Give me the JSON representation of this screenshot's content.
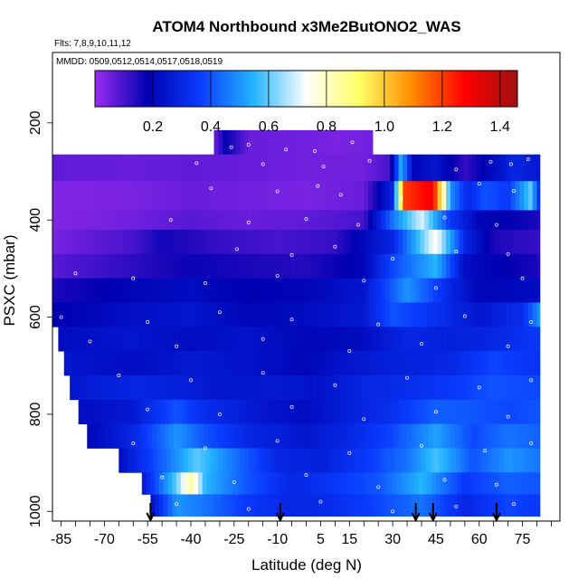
{
  "chart_data": {
    "type": "heatmap",
    "title": "ATOM4 Northbound x3Me2ButONO2_WAS",
    "flights_label": "Flts: 7,8,9,10,11,12",
    "dates_label": "MMDD: 0509,0512,0514,0517,0518,0519",
    "xlabel": "Latitude (deg N)",
    "ylabel": "PSXC (mbar)",
    "xlim": [
      -88,
      88
    ],
    "ylim": [
      1020,
      55
    ],
    "y_reversed": true,
    "grid": false,
    "xticks": [
      -85,
      -70,
      -55,
      -40,
      -25,
      -10,
      5,
      15,
      30,
      45,
      60,
      75
    ],
    "yticks": [
      200,
      400,
      600,
      800,
      1000
    ],
    "colorbar": {
      "range": [
        0.0,
        1.46
      ],
      "ticks": [
        0.2,
        0.4,
        0.6,
        0.8,
        1.0,
        1.2,
        1.4
      ],
      "colors": [
        "#9b2cf0",
        "#0000b0",
        "#0a3cff",
        "#23b4ff",
        "#ffffff",
        "#ffff66",
        "#ff8c00",
        "#ff0000",
        "#a01010"
      ]
    },
    "arrows_lat": [
      -54,
      -9,
      38,
      44,
      66
    ],
    "curtain_rows": [
      {
        "p_top": 215,
        "p_bot": 265,
        "lat_start": -32,
        "lat_end": 23,
        "segments": [
          [
            -32,
            0.05
          ],
          [
            -28,
            0.18
          ],
          [
            -20,
            0.06
          ],
          [
            0,
            0.05
          ],
          [
            10,
            0.04
          ],
          [
            23,
            0.05
          ]
        ]
      },
      {
        "p_top": 265,
        "p_bot": 320,
        "lat_start": -88,
        "lat_end": 81,
        "segments": [
          [
            -88,
            0.07
          ],
          [
            -60,
            0.06
          ],
          [
            -40,
            0.07
          ],
          [
            -20,
            0.06
          ],
          [
            0,
            0.05
          ],
          [
            20,
            0.05
          ],
          [
            29,
            0.1
          ],
          [
            33,
            0.55
          ],
          [
            37,
            0.2
          ],
          [
            45,
            0.25
          ],
          [
            55,
            0.12
          ],
          [
            65,
            0.22
          ],
          [
            72,
            0.3
          ],
          [
            81,
            0.25
          ]
        ]
      },
      {
        "p_top": 320,
        "p_bot": 380,
        "lat_start": -88,
        "lat_end": 81,
        "segments": [
          [
            -88,
            0.03
          ],
          [
            -60,
            0.04
          ],
          [
            -40,
            0.06
          ],
          [
            -20,
            0.05
          ],
          [
            0,
            0.04
          ],
          [
            20,
            0.06
          ],
          [
            30,
            0.3
          ],
          [
            34,
            1.2
          ],
          [
            44,
            1.3
          ],
          [
            50,
            0.5
          ],
          [
            56,
            0.3
          ],
          [
            62,
            0.4
          ],
          [
            70,
            0.35
          ],
          [
            78,
            0.6
          ],
          [
            81,
            0.3
          ]
        ]
      },
      {
        "p_top": 380,
        "p_bot": 420,
        "lat_start": -88,
        "lat_end": 81,
        "segments": [
          [
            -88,
            0.03
          ],
          [
            -60,
            0.05
          ],
          [
            -40,
            0.08
          ],
          [
            -20,
            0.06
          ],
          [
            0,
            0.07
          ],
          [
            20,
            0.1
          ],
          [
            30,
            0.45
          ],
          [
            40,
            0.7
          ],
          [
            50,
            0.35
          ],
          [
            60,
            0.2
          ],
          [
            70,
            0.18
          ],
          [
            81,
            0.15
          ]
        ]
      },
      {
        "p_top": 420,
        "p_bot": 470,
        "lat_start": -88,
        "lat_end": 81,
        "segments": [
          [
            -88,
            0.04
          ],
          [
            -60,
            0.1
          ],
          [
            -50,
            0.16
          ],
          [
            -30,
            0.12
          ],
          [
            -10,
            0.1
          ],
          [
            10,
            0.12
          ],
          [
            30,
            0.3
          ],
          [
            45,
            0.75
          ],
          [
            55,
            0.3
          ],
          [
            65,
            0.15
          ],
          [
            81,
            0.12
          ]
        ]
      },
      {
        "p_top": 470,
        "p_bot": 520,
        "lat_start": -88,
        "lat_end": 81,
        "segments": [
          [
            -88,
            0.08
          ],
          [
            -60,
            0.13
          ],
          [
            -40,
            0.17
          ],
          [
            -20,
            0.15
          ],
          [
            0,
            0.14
          ],
          [
            20,
            0.2
          ],
          [
            30,
            0.38
          ],
          [
            45,
            0.55
          ],
          [
            55,
            0.22
          ],
          [
            70,
            0.18
          ],
          [
            81,
            0.15
          ]
        ]
      },
      {
        "p_top": 520,
        "p_bot": 570,
        "lat_start": -88,
        "lat_end": 81,
        "segments": [
          [
            -88,
            0.15
          ],
          [
            -60,
            0.2
          ],
          [
            -40,
            0.22
          ],
          [
            -20,
            0.18
          ],
          [
            0,
            0.2
          ],
          [
            20,
            0.25
          ],
          [
            35,
            0.5
          ],
          [
            50,
            0.3
          ],
          [
            60,
            0.2
          ],
          [
            81,
            0.22
          ]
        ]
      },
      {
        "p_top": 570,
        "p_bot": 620,
        "lat_start": -88,
        "lat_end": 81,
        "segments": [
          [
            -88,
            0.18
          ],
          [
            -60,
            0.23
          ],
          [
            -40,
            0.25
          ],
          [
            -20,
            0.2
          ],
          [
            0,
            0.22
          ],
          [
            20,
            0.26
          ],
          [
            30,
            0.4
          ],
          [
            45,
            0.33
          ],
          [
            60,
            0.25
          ],
          [
            75,
            0.32
          ],
          [
            81,
            0.5
          ]
        ]
      },
      {
        "p_top": 620,
        "p_bot": 670,
        "lat_start": -86,
        "lat_end": 81,
        "segments": [
          [
            -86,
            0.22
          ],
          [
            -60,
            0.25
          ],
          [
            -40,
            0.22
          ],
          [
            -20,
            0.24
          ],
          [
            0,
            0.2
          ],
          [
            20,
            0.22
          ],
          [
            35,
            0.3
          ],
          [
            50,
            0.28
          ],
          [
            65,
            0.3
          ],
          [
            81,
            0.35
          ]
        ]
      },
      {
        "p_top": 670,
        "p_bot": 720,
        "lat_start": -84,
        "lat_end": 81,
        "segments": [
          [
            -84,
            0.25
          ],
          [
            -60,
            0.22
          ],
          [
            -40,
            0.26
          ],
          [
            -20,
            0.24
          ],
          [
            0,
            0.2
          ],
          [
            15,
            0.25
          ],
          [
            30,
            0.28
          ],
          [
            50,
            0.3
          ],
          [
            65,
            0.38
          ],
          [
            81,
            0.33
          ]
        ]
      },
      {
        "p_top": 720,
        "p_bot": 770,
        "lat_start": -82,
        "lat_end": 81,
        "segments": [
          [
            -82,
            0.25
          ],
          [
            -60,
            0.3
          ],
          [
            -45,
            0.28
          ],
          [
            -30,
            0.25
          ],
          [
            -10,
            0.26
          ],
          [
            5,
            0.24
          ],
          [
            20,
            0.3
          ],
          [
            35,
            0.32
          ],
          [
            50,
            0.35
          ],
          [
            65,
            0.4
          ],
          [
            81,
            0.38
          ]
        ]
      },
      {
        "p_top": 770,
        "p_bot": 820,
        "lat_start": -79,
        "lat_end": 81,
        "segments": [
          [
            -79,
            0.22
          ],
          [
            -60,
            0.26
          ],
          [
            -45,
            0.4
          ],
          [
            -35,
            0.32
          ],
          [
            -15,
            0.25
          ],
          [
            0,
            0.22
          ],
          [
            15,
            0.28
          ],
          [
            30,
            0.33
          ],
          [
            45,
            0.42
          ],
          [
            60,
            0.4
          ],
          [
            70,
            0.38
          ],
          [
            81,
            0.4
          ]
        ]
      },
      {
        "p_top": 820,
        "p_bot": 870,
        "lat_start": -76,
        "lat_end": 81,
        "segments": [
          [
            -76,
            0.2
          ],
          [
            -60,
            0.3
          ],
          [
            -45,
            0.5
          ],
          [
            -35,
            0.4
          ],
          [
            -20,
            0.3
          ],
          [
            0,
            0.25
          ],
          [
            15,
            0.3
          ],
          [
            30,
            0.38
          ],
          [
            45,
            0.52
          ],
          [
            58,
            0.38
          ],
          [
            70,
            0.45
          ],
          [
            81,
            0.42
          ]
        ]
      },
      {
        "p_top": 870,
        "p_bot": 920,
        "lat_start": -65,
        "lat_end": 81,
        "segments": [
          [
            -65,
            0.22
          ],
          [
            -50,
            0.42
          ],
          [
            -38,
            0.6
          ],
          [
            -25,
            0.45
          ],
          [
            -10,
            0.3
          ],
          [
            5,
            0.28
          ],
          [
            20,
            0.35
          ],
          [
            35,
            0.45
          ],
          [
            45,
            0.58
          ],
          [
            58,
            0.4
          ],
          [
            70,
            0.5
          ],
          [
            81,
            0.45
          ]
        ]
      },
      {
        "p_top": 920,
        "p_bot": 965,
        "lat_start": -57,
        "lat_end": 81,
        "segments": [
          [
            -57,
            0.25
          ],
          [
            -45,
            0.6
          ],
          [
            -40,
            0.85
          ],
          [
            -35,
            0.55
          ],
          [
            -20,
            0.4
          ],
          [
            -5,
            0.3
          ],
          [
            10,
            0.35
          ],
          [
            25,
            0.4
          ],
          [
            40,
            0.55
          ],
          [
            55,
            0.35
          ],
          [
            70,
            0.42
          ],
          [
            81,
            0.4
          ]
        ]
      },
      {
        "p_top": 965,
        "p_bot": 1010,
        "lat_start": -54,
        "lat_end": 81,
        "segments": [
          [
            -54,
            0.22
          ],
          [
            -45,
            0.5
          ],
          [
            -35,
            0.45
          ],
          [
            -20,
            0.35
          ],
          [
            -5,
            0.3
          ],
          [
            10,
            0.32
          ],
          [
            25,
            0.38
          ],
          [
            40,
            0.45
          ],
          [
            55,
            0.3
          ],
          [
            70,
            0.38
          ],
          [
            81,
            0.35
          ]
        ]
      }
    ],
    "samples": [
      [
        -26,
        250
      ],
      [
        -20,
        245
      ],
      [
        -7,
        255
      ],
      [
        3,
        258
      ],
      [
        16,
        240
      ],
      [
        -38,
        283
      ],
      [
        -15,
        285
      ],
      [
        6,
        290
      ],
      [
        22,
        278
      ],
      [
        52,
        296
      ],
      [
        64,
        280
      ],
      [
        71,
        285
      ],
      [
        77,
        275
      ],
      [
        -33,
        335
      ],
      [
        -10,
        341
      ],
      [
        4,
        330
      ],
      [
        12,
        348
      ],
      [
        33,
        355
      ],
      [
        60,
        325
      ],
      [
        72,
        340
      ],
      [
        -47,
        400
      ],
      [
        -20,
        405
      ],
      [
        0,
        398
      ],
      [
        18,
        410
      ],
      [
        48,
        395
      ],
      [
        66,
        410
      ],
      [
        -24,
        460
      ],
      [
        -5,
        472
      ],
      [
        10,
        455
      ],
      [
        30,
        480
      ],
      [
        52,
        465
      ],
      [
        70,
        470
      ],
      [
        -80,
        510
      ],
      [
        -60,
        520
      ],
      [
        -35,
        530
      ],
      [
        -10,
        515
      ],
      [
        20,
        525
      ],
      [
        45,
        540
      ],
      [
        75,
        520
      ],
      [
        -85,
        600
      ],
      [
        -55,
        610
      ],
      [
        -30,
        590
      ],
      [
        -5,
        605
      ],
      [
        25,
        615
      ],
      [
        55,
        598
      ],
      [
        78,
        610
      ],
      [
        -75,
        650
      ],
      [
        -45,
        660
      ],
      [
        -15,
        645
      ],
      [
        15,
        670
      ],
      [
        40,
        655
      ],
      [
        70,
        660
      ],
      [
        -65,
        720
      ],
      [
        -40,
        730
      ],
      [
        -15,
        715
      ],
      [
        10,
        740
      ],
      [
        35,
        725
      ],
      [
        60,
        745
      ],
      [
        78,
        730
      ],
      [
        -55,
        790
      ],
      [
        -30,
        800
      ],
      [
        -5,
        785
      ],
      [
        20,
        810
      ],
      [
        45,
        795
      ],
      [
        70,
        805
      ],
      [
        -60,
        860
      ],
      [
        -35,
        870
      ],
      [
        -10,
        855
      ],
      [
        15,
        880
      ],
      [
        40,
        865
      ],
      [
        62,
        875
      ],
      [
        78,
        860
      ],
      [
        -50,
        930
      ],
      [
        -25,
        940
      ],
      [
        0,
        925
      ],
      [
        25,
        950
      ],
      [
        48,
        935
      ],
      [
        66,
        945
      ],
      [
        -45,
        985
      ],
      [
        -20,
        995
      ],
      [
        5,
        980
      ],
      [
        30,
        1000
      ],
      [
        52,
        990
      ],
      [
        72,
        985
      ]
    ]
  }
}
